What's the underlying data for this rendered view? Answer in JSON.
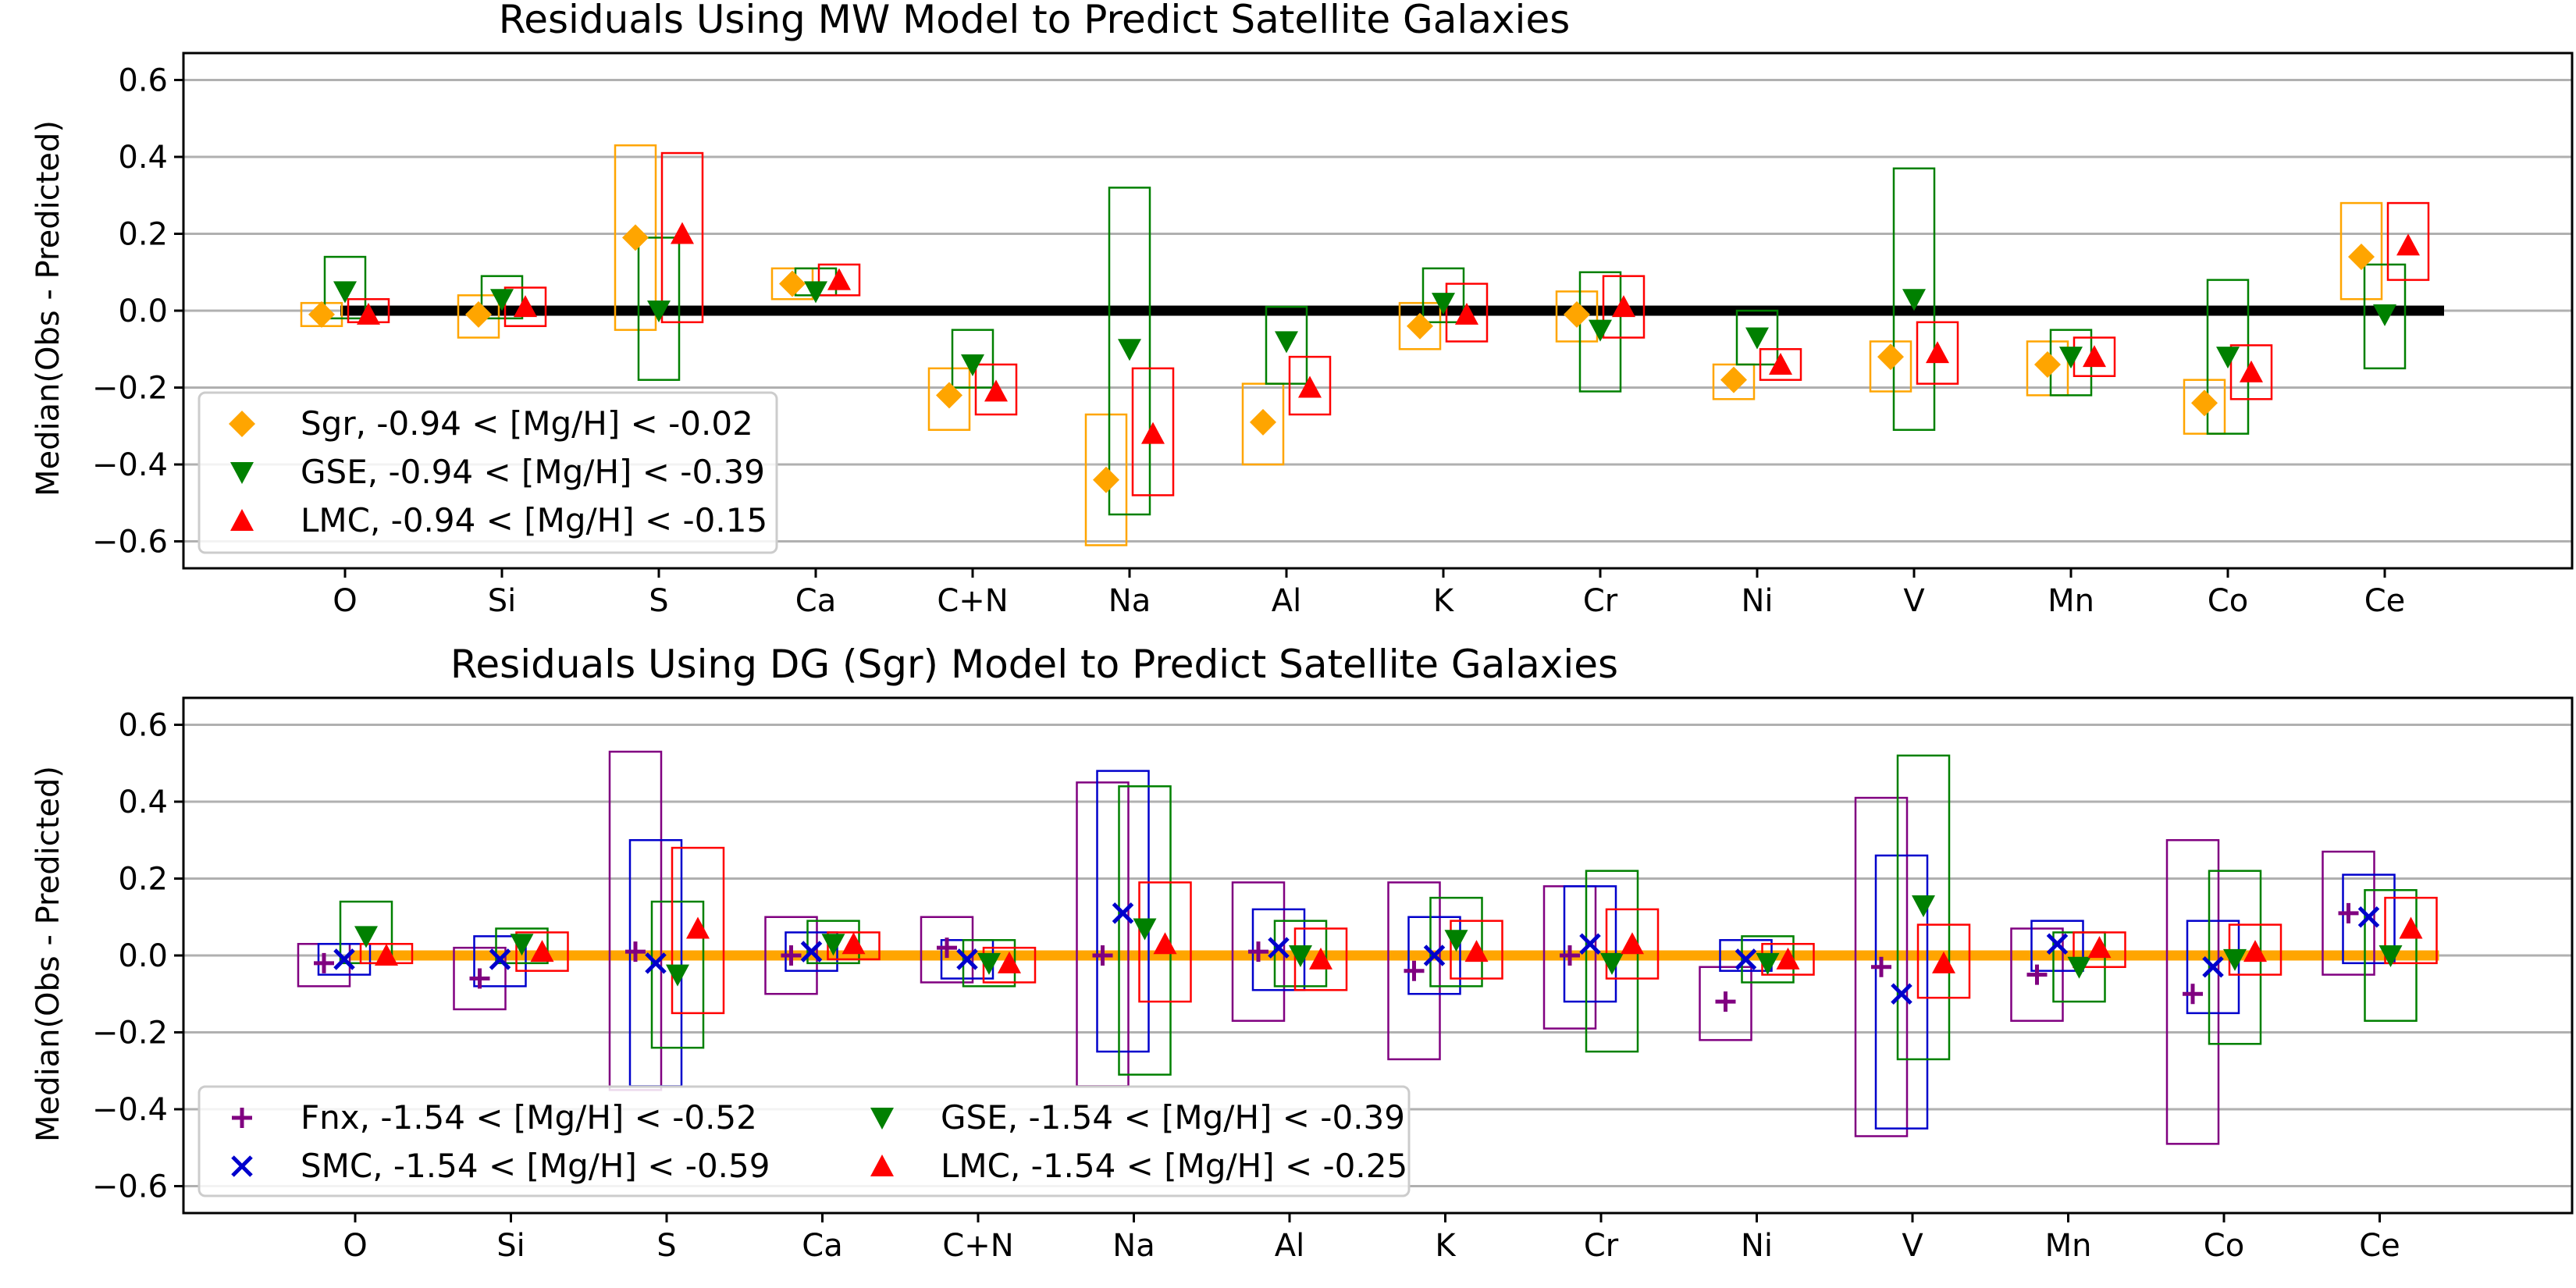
{
  "chart_data": [
    {
      "type": "scatter",
      "title": "Residuals Using MW Model to Predict Satellite Galaxies",
      "xlabel": "",
      "ylabel": "Median(Obs - Predicted)",
      "ylim": [
        -0.67,
        0.67
      ],
      "yticks": [
        -0.6,
        -0.4,
        -0.2,
        0.0,
        0.2,
        0.4,
        0.6
      ],
      "ytick_labels": [
        "−0.6",
        "−0.4",
        "−0.2",
        "0.0",
        "0.2",
        "0.4",
        "0.6"
      ],
      "grid": true,
      "reference_line": {
        "y": 0.0,
        "color": "#000000"
      },
      "categories": [
        "O",
        "Si",
        "S",
        "Ca",
        "C+N",
        "Na",
        "Al",
        "K",
        "Cr",
        "Ni",
        "V",
        "Mn",
        "Co",
        "Ce"
      ],
      "legend_location": "lower-left",
      "legend_columns": 1,
      "series": [
        {
          "name": "Sgr, -0.94 < [Mg/H] < -0.02",
          "marker": "diamond",
          "color": "#FFA500",
          "values": [
            -0.01,
            -0.01,
            0.19,
            0.07,
            -0.22,
            -0.44,
            -0.29,
            -0.04,
            -0.01,
            -0.18,
            -0.12,
            -0.14,
            -0.24,
            0.14
          ],
          "box_low": [
            -0.04,
            -0.07,
            -0.05,
            0.03,
            -0.31,
            -0.61,
            -0.4,
            -0.1,
            -0.08,
            -0.23,
            -0.21,
            -0.22,
            -0.32,
            0.03
          ],
          "box_high": [
            0.02,
            0.04,
            0.43,
            0.11,
            -0.15,
            -0.27,
            -0.19,
            0.02,
            0.05,
            -0.14,
            -0.08,
            -0.08,
            -0.18,
            0.28
          ]
        },
        {
          "name": "GSE, -0.94 < [Mg/H] < -0.39",
          "marker": "triangle-down",
          "color": "#008000",
          "values": [
            0.05,
            0.03,
            0.0,
            0.05,
            -0.14,
            -0.1,
            -0.08,
            0.02,
            -0.05,
            -0.07,
            0.03,
            -0.12,
            -0.12,
            -0.01
          ],
          "box_low": [
            -0.02,
            -0.02,
            -0.18,
            0.04,
            -0.2,
            -0.53,
            -0.19,
            -0.03,
            -0.21,
            -0.14,
            -0.31,
            -0.22,
            -0.32,
            -0.15
          ],
          "box_high": [
            0.14,
            0.09,
            0.19,
            0.11,
            -0.05,
            0.32,
            0.01,
            0.11,
            0.1,
            0.0,
            0.37,
            -0.05,
            0.08,
            0.12
          ]
        },
        {
          "name": "LMC, -0.94 < [Mg/H] < -0.15",
          "marker": "triangle-up",
          "color": "#FF0000",
          "values": [
            -0.01,
            0.01,
            0.2,
            0.08,
            -0.21,
            -0.32,
            -0.2,
            -0.01,
            0.01,
            -0.14,
            -0.11,
            -0.12,
            -0.16,
            0.17
          ],
          "box_low": [
            -0.03,
            -0.04,
            -0.03,
            0.04,
            -0.27,
            -0.48,
            -0.27,
            -0.08,
            -0.07,
            -0.18,
            -0.19,
            -0.17,
            -0.23,
            0.08
          ],
          "box_high": [
            0.03,
            0.06,
            0.41,
            0.12,
            -0.14,
            -0.15,
            -0.12,
            0.07,
            0.09,
            -0.1,
            -0.03,
            -0.07,
            -0.09,
            0.28
          ]
        }
      ]
    },
    {
      "type": "scatter",
      "title": "Residuals Using DG (Sgr) Model to Predict Satellite Galaxies",
      "xlabel": "",
      "ylabel": "Median(Obs - Predicted)",
      "ylim": [
        -0.67,
        0.67
      ],
      "yticks": [
        -0.6,
        -0.4,
        -0.2,
        0.0,
        0.2,
        0.4,
        0.6
      ],
      "ytick_labels": [
        "−0.6",
        "−0.4",
        "−0.2",
        "0.0",
        "0.2",
        "0.4",
        "0.6"
      ],
      "grid": true,
      "reference_line": {
        "y": 0.0,
        "color": "#FFA500"
      },
      "categories": [
        "O",
        "Si",
        "S",
        "Ca",
        "C+N",
        "Na",
        "Al",
        "K",
        "Cr",
        "Ni",
        "V",
        "Mn",
        "Co",
        "Ce"
      ],
      "legend_location": "lower-left",
      "legend_columns": 2,
      "series": [
        {
          "name": "Fnx, -1.54 < [Mg/H] < -0.52",
          "marker": "plus",
          "color": "#800080",
          "values": [
            -0.02,
            -0.06,
            0.01,
            0.0,
            0.02,
            0.0,
            0.01,
            -0.04,
            0.0,
            -0.12,
            -0.03,
            -0.05,
            -0.1,
            0.11
          ],
          "box_low": [
            -0.08,
            -0.14,
            -0.35,
            -0.1,
            -0.07,
            -0.34,
            -0.17,
            -0.27,
            -0.19,
            -0.22,
            -0.47,
            -0.17,
            -0.49,
            -0.05
          ],
          "box_high": [
            0.03,
            0.02,
            0.53,
            0.1,
            0.1,
            0.45,
            0.19,
            0.19,
            0.18,
            -0.03,
            0.41,
            0.07,
            0.3,
            0.27
          ]
        },
        {
          "name": "SMC, -1.54 < [Mg/H] < -0.59",
          "marker": "cross",
          "color": "#0000CC",
          "values": [
            -0.01,
            -0.01,
            -0.02,
            0.01,
            -0.01,
            0.11,
            0.02,
            0.0,
            0.03,
            -0.01,
            -0.1,
            0.03,
            -0.03,
            0.1
          ],
          "box_low": [
            -0.05,
            -0.08,
            -0.34,
            -0.04,
            -0.06,
            -0.25,
            -0.09,
            -0.1,
            -0.12,
            -0.04,
            -0.45,
            -0.04,
            -0.15,
            -0.02
          ],
          "box_high": [
            0.03,
            0.05,
            0.3,
            0.06,
            0.04,
            0.48,
            0.12,
            0.1,
            0.18,
            0.04,
            0.26,
            0.09,
            0.09,
            0.21
          ]
        },
        {
          "name": "GSE, -1.54 < [Mg/H] < -0.39",
          "marker": "triangle-down",
          "color": "#008000",
          "values": [
            0.05,
            0.03,
            -0.05,
            0.03,
            -0.02,
            0.07,
            0.0,
            0.04,
            -0.02,
            -0.02,
            0.13,
            -0.03,
            -0.01,
            0.0
          ],
          "box_low": [
            -0.02,
            -0.02,
            -0.24,
            -0.02,
            -0.08,
            -0.31,
            -0.08,
            -0.08,
            -0.25,
            -0.07,
            -0.27,
            -0.12,
            -0.23,
            -0.17
          ],
          "box_high": [
            0.14,
            0.07,
            0.14,
            0.09,
            0.04,
            0.44,
            0.09,
            0.15,
            0.22,
            0.05,
            0.52,
            0.06,
            0.22,
            0.17
          ]
        },
        {
          "name": "LMC, -1.54 < [Mg/H] < -0.25",
          "marker": "triangle-up",
          "color": "#FF0000",
          "values": [
            0.0,
            0.01,
            0.07,
            0.03,
            -0.02,
            0.03,
            -0.01,
            0.01,
            0.03,
            -0.01,
            -0.02,
            0.02,
            0.01,
            0.07
          ],
          "box_low": [
            -0.02,
            -0.04,
            -0.15,
            -0.01,
            -0.07,
            -0.12,
            -0.09,
            -0.06,
            -0.06,
            -0.05,
            -0.11,
            -0.03,
            -0.05,
            -0.02
          ],
          "box_high": [
            0.03,
            0.06,
            0.28,
            0.06,
            0.02,
            0.19,
            0.07,
            0.09,
            0.12,
            0.03,
            0.08,
            0.06,
            0.08,
            0.15
          ]
        }
      ]
    }
  ]
}
